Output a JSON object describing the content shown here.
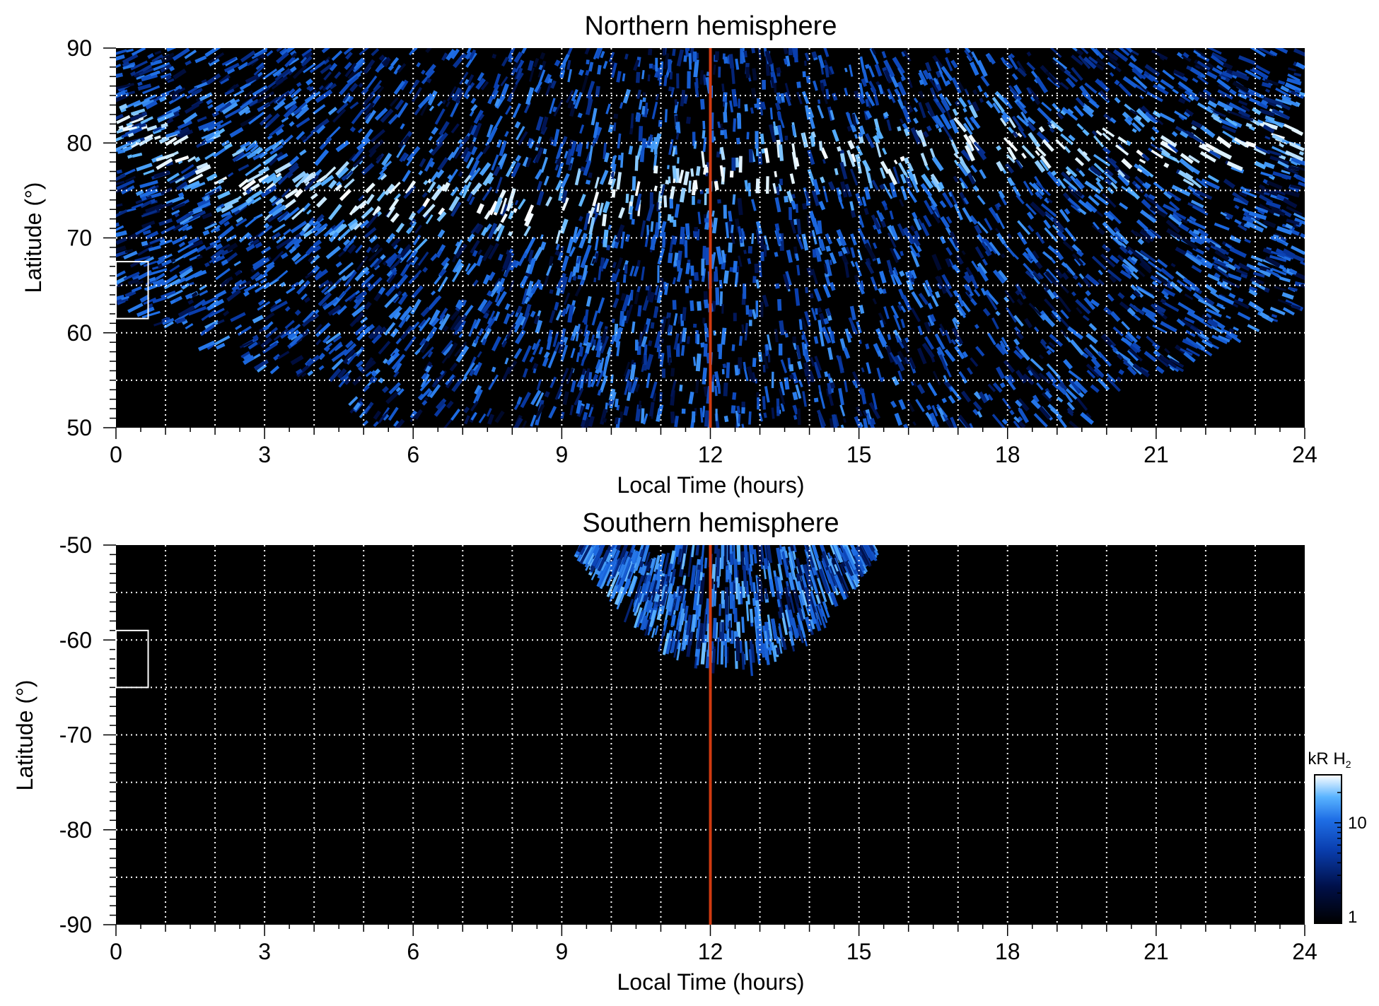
{
  "chart_data": [
    {
      "type": "heatmap",
      "title": "Northern hemisphere",
      "xlabel": "Local Time (hours)",
      "ylabel": "Latitude (°)",
      "xlim": [
        0,
        24
      ],
      "ylim": [
        50,
        90
      ],
      "xticks": [
        "0",
        "3",
        "6",
        "9",
        "12",
        "15",
        "18",
        "21",
        "24"
      ],
      "yticks": [
        "50",
        "60",
        "70",
        "80",
        "90"
      ],
      "x_gridlines": [
        1,
        2,
        3,
        4,
        5,
        6,
        7,
        8,
        9,
        10,
        11,
        12,
        13,
        14,
        15,
        16,
        17,
        18,
        19,
        20,
        21,
        22,
        23
      ],
      "y_gridlines": [
        55,
        60,
        65,
        70,
        75,
        80,
        85
      ],
      "grid": true,
      "marker_line_x": 12,
      "box": {
        "x": [
          0,
          0.65
        ],
        "y": [
          61.5,
          67.5
        ]
      },
      "colormap": [
        "#000000",
        "#00104a",
        "#0a3fb0",
        "#1f6fe6",
        "#59b3ff",
        "#dff2ff",
        "#ffffff"
      ],
      "emission": {
        "outer_boundary": [
          [
            0,
            63
          ],
          [
            1,
            60.5
          ],
          [
            2,
            58
          ],
          [
            3,
            56
          ],
          [
            4,
            55
          ],
          [
            4.5,
            55.6
          ],
          [
            5,
            50
          ],
          [
            6,
            50
          ],
          [
            9,
            50
          ],
          [
            12,
            50
          ],
          [
            15,
            50
          ],
          [
            18,
            50
          ],
          [
            19.5,
            50
          ],
          [
            20.2,
            55
          ],
          [
            21,
            55
          ],
          [
            22,
            58
          ],
          [
            23,
            60.5
          ],
          [
            24,
            63
          ]
        ],
        "main_oval": [
          [
            0,
            82
          ],
          [
            1,
            79
          ],
          [
            2,
            77
          ],
          [
            3,
            75.5
          ],
          [
            4,
            74.5
          ],
          [
            5,
            74
          ],
          [
            6,
            73.8
          ],
          [
            7,
            73.5
          ],
          [
            8,
            73
          ],
          [
            9,
            73
          ],
          [
            10,
            74
          ],
          [
            11,
            75.5
          ],
          [
            12,
            76.5
          ],
          [
            13,
            77.5
          ],
          [
            14,
            78
          ],
          [
            15,
            78
          ],
          [
            16,
            78.5
          ],
          [
            17,
            79.5
          ],
          [
            18,
            80
          ],
          [
            19,
            79.5
          ],
          [
            20,
            79
          ],
          [
            21,
            79
          ],
          [
            22,
            79
          ],
          [
            23,
            79.5
          ],
          [
            24,
            82
          ]
        ]
      }
    },
    {
      "type": "heatmap",
      "title": "Southern hemisphere",
      "xlabel": "Local Time (hours)",
      "ylabel": "Latitude (°)",
      "xlim": [
        0,
        24
      ],
      "ylim": [
        -90,
        -50
      ],
      "xticks": [
        "0",
        "3",
        "6",
        "9",
        "12",
        "15",
        "18",
        "21",
        "24"
      ],
      "yticks": [
        "-90",
        "-80",
        "-70",
        "-60",
        "-50"
      ],
      "x_gridlines": [
        1,
        2,
        3,
        4,
        5,
        6,
        7,
        8,
        9,
        10,
        11,
        12,
        13,
        14,
        15,
        16,
        17,
        18,
        19,
        20,
        21,
        22,
        23
      ],
      "y_gridlines": [
        -85,
        -80,
        -75,
        -70,
        -65,
        -60,
        -55
      ],
      "grid": true,
      "marker_line_x": 12,
      "box": {
        "x": [
          0,
          0.65
        ],
        "y": [
          -65,
          -59
        ]
      },
      "colormap": [
        "#000000",
        "#00104a",
        "#0a3fb0",
        "#1f6fe6",
        "#59b3ff",
        "#dff2ff",
        "#ffffff"
      ],
      "emission": {
        "region": {
          "x_range": [
            9.4,
            15.3
          ],
          "center_x": 12.35,
          "y_top": -50,
          "y_bottom_min": -62.8
        }
      },
      "colorbar": {
        "label": "kR H",
        "label_sub": "2",
        "ticks": [
          "1",
          "10"
        ],
        "scale": "log",
        "range": [
          1,
          30
        ]
      }
    }
  ]
}
